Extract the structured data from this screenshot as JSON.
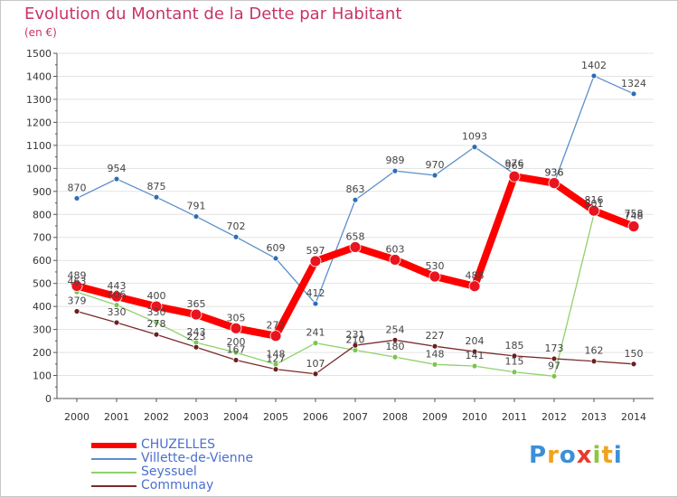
{
  "title": "Evolution du Montant de la Dette par Habitant",
  "subtitle": "(en €)",
  "logo": "Proxiti",
  "colors": {
    "title": "#c8346a",
    "axis": "#555555",
    "grid": "#e3e3e3",
    "tick_text": "#333333",
    "label_text": "#444444",
    "legend_text": "#4a6fcf"
  },
  "chart_data": {
    "type": "line",
    "x": [
      "2000",
      "2001",
      "2002",
      "2003",
      "2004",
      "2005",
      "2006",
      "2007",
      "2008",
      "2009",
      "2010",
      "2011",
      "2012",
      "2013",
      "2014"
    ],
    "ylim": [
      0,
      1500
    ],
    "yticks": [
      0,
      100,
      200,
      300,
      400,
      500,
      600,
      700,
      800,
      900,
      1000,
      1100,
      1200,
      1300,
      1400,
      1500
    ],
    "grid": true,
    "legend_position": "bottom-left",
    "series": [
      {
        "name": "Villette-de-Vienne",
        "color": "#5b8ec9",
        "marker": "#2f6db5",
        "width": 1.3,
        "r": 3,
        "values": [
          870,
          954,
          875,
          791,
          702,
          609,
          412,
          863,
          989,
          970,
          1093,
          976,
          936,
          1402,
          1324
        ]
      },
      {
        "name": "Seyssuel",
        "color": "#8fd16b",
        "marker": "#79c64e",
        "width": 1.3,
        "r": 3,
        "values": [
          463,
          406,
          330,
          243,
          200,
          148,
          241,
          210,
          180,
          148,
          141,
          115,
          97,
          801,
          758
        ]
      },
      {
        "name": "Communay",
        "color": "#7a2b2b",
        "marker": "#6b1f1f",
        "width": 1.3,
        "r": 3,
        "values": [
          379,
          330,
          278,
          223,
          167,
          127,
          107,
          231,
          254,
          227,
          204,
          185,
          173,
          162,
          150
        ]
      },
      {
        "name": "CHUZELLES",
        "color": "#ff0000",
        "marker": "#e8141f",
        "width": 8,
        "r": 6,
        "values": [
          489,
          443,
          400,
          365,
          305,
          272,
          597,
          658,
          603,
          530,
          488,
          965,
          936,
          816,
          748
        ]
      }
    ],
    "legend_order": [
      "CHUZELLES",
      "Villette-de-Vienne",
      "Seyssuel",
      "Communay"
    ],
    "data_labels": [
      {
        "series": "Villette-de-Vienne",
        "labels": [
          "870",
          "954",
          "875",
          "791",
          "702",
          "609",
          "412",
          "863",
          "989",
          "970",
          "1093",
          "976",
          "936",
          "1402",
          "1324"
        ]
      },
      {
        "series": "Seyssuel",
        "labels": [
          "463",
          "406",
          "330",
          "243",
          "200",
          "148",
          "241",
          "210",
          "180",
          "148",
          "141",
          "115",
          "97",
          "801",
          "758"
        ]
      },
      {
        "series": "Communay",
        "labels": [
          "379",
          "330",
          "278",
          "223",
          "167",
          "127",
          "107",
          "231",
          "254",
          "227",
          "204",
          "185",
          "173",
          "162",
          "150"
        ]
      },
      {
        "series": "CHUZELLES",
        "labels": [
          "489",
          "443",
          "400",
          "365",
          "305",
          "272",
          "597",
          "658",
          "603",
          "530",
          "488",
          "965",
          "936",
          "816",
          "748"
        ]
      }
    ]
  }
}
